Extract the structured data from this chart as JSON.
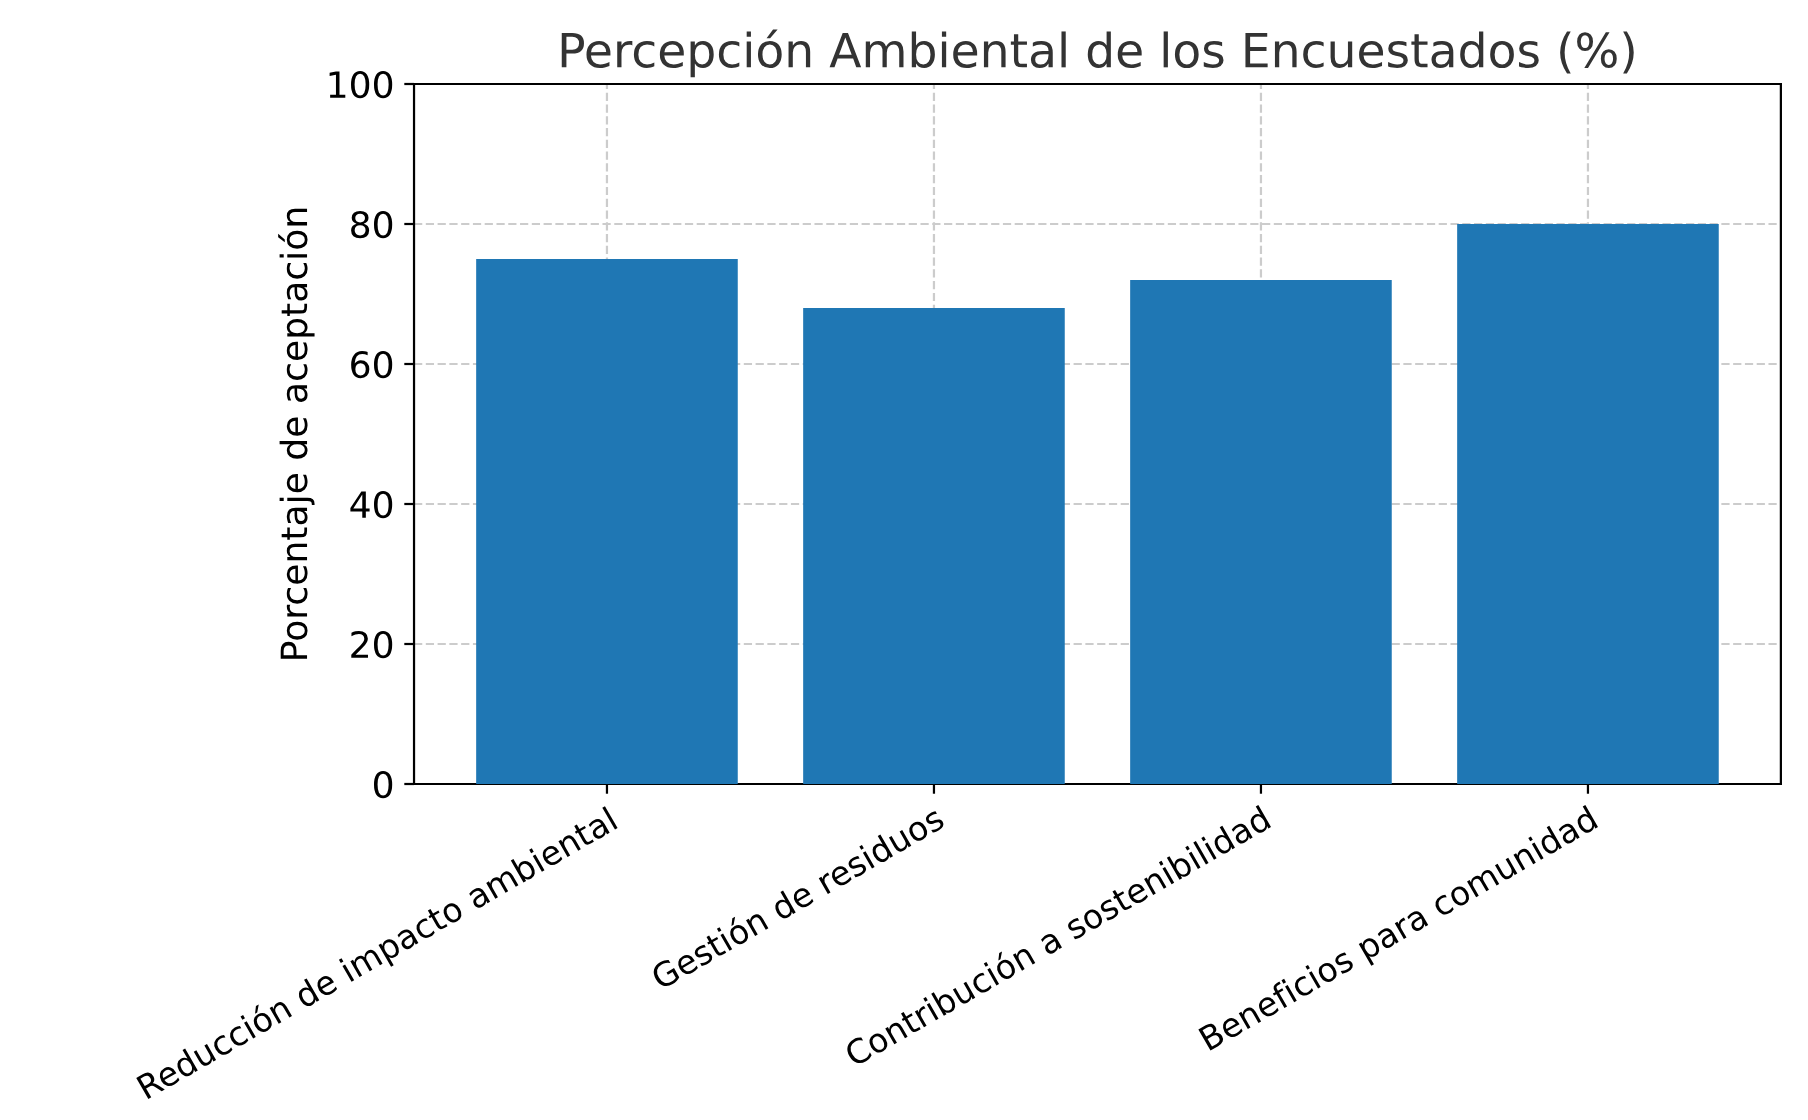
{
  "chart_data": {
    "type": "bar",
    "title": "Percepción Ambiental de los Encuestados (%)",
    "ylabel": "Porcentaje de aceptación",
    "categories": [
      "Reducción de impacto ambiental",
      "Gestión de residuos",
      "Contribución a sostenibilidad",
      "Beneficios para comunidad"
    ],
    "values": [
      75,
      68,
      72,
      80
    ],
    "color": "#1f77b4",
    "ylim": [
      0,
      100
    ],
    "yticks": [
      0,
      20,
      40,
      60,
      80,
      100
    ],
    "grid": true,
    "line_style": "dashed"
  }
}
